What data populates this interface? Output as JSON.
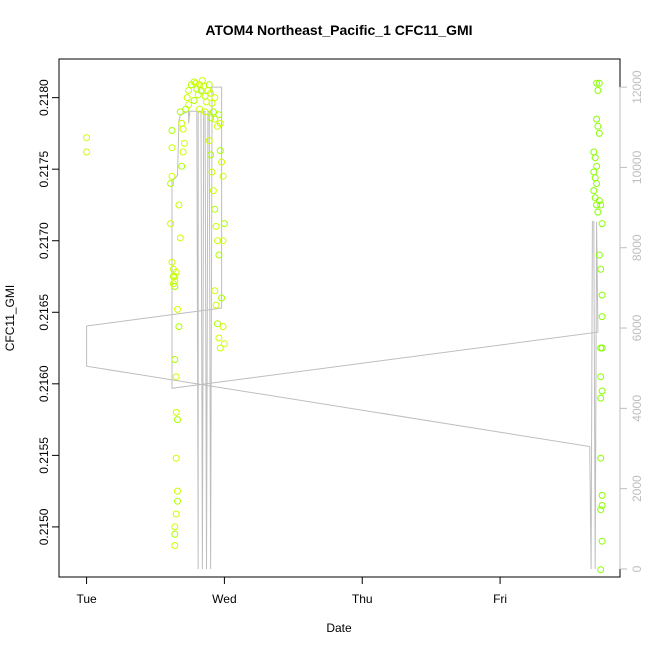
{
  "chart_data": {
    "type": "scatter",
    "title": "ATOM4 Northeast_Pacific_1 CFC11_GMI",
    "xlabel": "Date",
    "ylabel": "CFC11_GMI",
    "x_ticks": [
      {
        "label": "Tue",
        "day": 0
      },
      {
        "label": "Wed",
        "day": 1
      },
      {
        "label": "Thu",
        "day": 2
      },
      {
        "label": "Fri",
        "day": 3
      }
    ],
    "xlim": [
      -0.2,
      3.87
    ],
    "ylim": [
      0.21465,
      0.21827
    ],
    "y_ticks": [
      0.215,
      0.2155,
      0.216,
      0.2165,
      0.217,
      0.2175,
      0.218
    ],
    "y2_ticks": [
      0,
      2000,
      4000,
      6000,
      8000,
      10000,
      12000
    ],
    "y2lim": [
      -200,
      12700
    ],
    "y2_color": "#bebebe",
    "grid": false,
    "legend": "none",
    "series": [
      {
        "marker": "open-circle",
        "colors": [
          "#ccff00",
          "#aaff00",
          "#88ff00"
        ],
        "points": [
          [
            0.0,
            0.21772
          ],
          [
            0.0,
            0.21762
          ],
          [
            0.61,
            0.21712
          ],
          [
            0.61,
            0.2174
          ],
          [
            0.62,
            0.21745
          ],
          [
            0.62,
            0.21765
          ],
          [
            0.62,
            0.21777
          ],
          [
            0.62,
            0.21685
          ],
          [
            0.63,
            0.2168
          ],
          [
            0.63,
            0.21675
          ],
          [
            0.63,
            0.2167
          ],
          [
            0.64,
            0.21672
          ],
          [
            0.64,
            0.21668
          ],
          [
            0.64,
            0.21675
          ],
          [
            0.65,
            0.21678
          ],
          [
            0.64,
            0.21617
          ],
          [
            0.65,
            0.21605
          ],
          [
            0.65,
            0.2158
          ],
          [
            0.66,
            0.21575
          ],
          [
            0.65,
            0.21548
          ],
          [
            0.66,
            0.21525
          ],
          [
            0.66,
            0.21518
          ],
          [
            0.65,
            0.21509
          ],
          [
            0.64,
            0.215
          ],
          [
            0.64,
            0.21495
          ],
          [
            0.64,
            0.21487
          ],
          [
            0.66,
            0.21652
          ],
          [
            0.67,
            0.2164
          ],
          [
            0.67,
            0.21725
          ],
          [
            0.68,
            0.21702
          ],
          [
            0.68,
            0.2179
          ],
          [
            0.69,
            0.21782
          ],
          [
            0.7,
            0.21778
          ],
          [
            0.69,
            0.21752
          ],
          [
            0.7,
            0.21762
          ],
          [
            0.71,
            0.21768
          ],
          [
            0.72,
            0.21792
          ],
          [
            0.73,
            0.218
          ],
          [
            0.74,
            0.21805
          ],
          [
            0.76,
            0.21809
          ],
          [
            0.78,
            0.21811
          ],
          [
            0.79,
            0.2181
          ],
          [
            0.8,
            0.21806
          ],
          [
            0.81,
            0.21802
          ],
          [
            0.82,
            0.21809
          ],
          [
            0.83,
            0.21805
          ],
          [
            0.84,
            0.21812
          ],
          [
            0.85,
            0.21808
          ],
          [
            0.86,
            0.21801
          ],
          [
            0.87,
            0.21797
          ],
          [
            0.88,
            0.21805
          ],
          [
            0.89,
            0.21809
          ],
          [
            0.9,
            0.21803
          ],
          [
            0.91,
            0.21796
          ],
          [
            0.92,
            0.2179
          ],
          [
            0.93,
            0.21785
          ],
          [
            0.95,
            0.2178
          ],
          [
            0.96,
            0.21788
          ],
          [
            0.97,
            0.21782
          ],
          [
            0.74,
            0.21795
          ],
          [
            0.78,
            0.21798
          ],
          [
            0.82,
            0.21792
          ],
          [
            0.86,
            0.2179
          ],
          [
            0.9,
            0.21786
          ],
          [
            0.93,
            0.218
          ],
          [
            0.89,
            0.2177
          ],
          [
            0.9,
            0.2176
          ],
          [
            0.91,
            0.21748
          ],
          [
            0.92,
            0.21735
          ],
          [
            0.93,
            0.21722
          ],
          [
            0.94,
            0.2171
          ],
          [
            0.95,
            0.217
          ],
          [
            0.96,
            0.2169
          ],
          [
            0.93,
            0.21665
          ],
          [
            0.94,
            0.21655
          ],
          [
            0.95,
            0.21642
          ],
          [
            0.96,
            0.21632
          ],
          [
            0.97,
            0.21625
          ],
          [
            0.98,
            0.2166
          ],
          [
            0.99,
            0.2164
          ],
          [
            1.0,
            0.21628
          ],
          [
            0.97,
            0.21763
          ],
          [
            0.98,
            0.21755
          ],
          [
            0.99,
            0.21745
          ],
          [
            1.0,
            0.21712
          ],
          [
            0.99,
            0.217
          ],
          [
            3.7,
            0.2181
          ],
          [
            3.71,
            0.21805
          ],
          [
            3.72,
            0.2181
          ],
          [
            3.7,
            0.21785
          ],
          [
            3.71,
            0.2178
          ],
          [
            3.72,
            0.21775
          ],
          [
            3.68,
            0.21762
          ],
          [
            3.69,
            0.21758
          ],
          [
            3.7,
            0.21752
          ],
          [
            3.68,
            0.21748
          ],
          [
            3.69,
            0.21744
          ],
          [
            3.7,
            0.2174
          ],
          [
            3.68,
            0.21735
          ],
          [
            3.69,
            0.2173
          ],
          [
            3.7,
            0.21725
          ],
          [
            3.71,
            0.2172
          ],
          [
            3.72,
            0.21728
          ],
          [
            3.73,
            0.21725
          ],
          [
            3.74,
            0.21712
          ],
          [
            3.72,
            0.2169
          ],
          [
            3.73,
            0.2168
          ],
          [
            3.74,
            0.21662
          ],
          [
            3.74,
            0.21647
          ],
          [
            3.73,
            0.21625
          ],
          [
            3.74,
            0.21625
          ],
          [
            3.73,
            0.21605
          ],
          [
            3.74,
            0.21595
          ],
          [
            3.73,
            0.2159
          ],
          [
            3.73,
            0.21548
          ],
          [
            3.74,
            0.21522
          ],
          [
            3.74,
            0.21515
          ],
          [
            3.73,
            0.21512
          ],
          [
            3.74,
            0.2149
          ],
          [
            3.73,
            0.2147
          ]
        ]
      },
      {
        "name": "",
        "type": "line",
        "axis": "right",
        "color": "#bebebe",
        "points": [
          [
            0.0,
            6050
          ],
          [
            0.0,
            5050
          ],
          [
            3.65,
            3050
          ],
          [
            3.66,
            0
          ],
          [
            3.67,
            8650
          ],
          [
            3.68,
            8650
          ],
          [
            3.69,
            0
          ],
          [
            3.7,
            8650
          ],
          [
            3.71,
            5900
          ],
          [
            0.62,
            4500
          ],
          [
            0.62,
            9650
          ],
          [
            0.66,
            9800
          ],
          [
            0.67,
            11150
          ],
          [
            0.68,
            11300
          ],
          [
            0.74,
            11400
          ],
          [
            0.74,
            11100
          ],
          [
            0.75,
            11400
          ],
          [
            0.8,
            11400
          ],
          [
            0.81,
            0
          ],
          [
            0.81,
            11400
          ],
          [
            0.83,
            11400
          ],
          [
            0.84,
            0
          ],
          [
            0.85,
            11400
          ],
          [
            0.86,
            11400
          ],
          [
            0.87,
            0
          ],
          [
            0.88,
            11400
          ],
          [
            0.89,
            11400
          ],
          [
            0.9,
            0
          ],
          [
            0.91,
            11400
          ],
          [
            0.91,
            12000
          ],
          [
            0.98,
            12000
          ],
          [
            0.98,
            6500
          ],
          [
            0.0,
            6050
          ]
        ]
      }
    ]
  }
}
